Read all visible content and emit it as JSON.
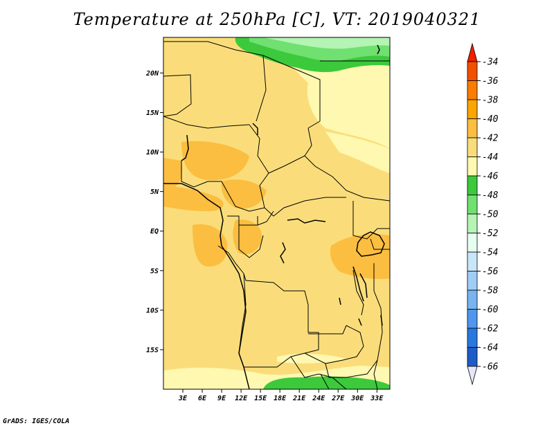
{
  "title": "Temperature at 250hPa [C], VT: 2019040321",
  "footer": "GrADS: IGES/COLA",
  "map": {
    "lon_range": [
      0,
      35
    ],
    "lat_range": [
      -20,
      24.5
    ],
    "x_ticks": [
      "3E",
      "6E",
      "9E",
      "12E",
      "15E",
      "18E",
      "21E",
      "24E",
      "27E",
      "30E",
      "33E"
    ],
    "x_tick_values": [
      3,
      6,
      9,
      12,
      15,
      18,
      21,
      24,
      27,
      30,
      33
    ],
    "y_ticks": [
      "20N",
      "15N",
      "10N",
      "5N",
      "EQ",
      "5S",
      "10S",
      "15S"
    ],
    "y_tick_values": [
      20,
      15,
      10,
      5,
      0,
      -5,
      -10,
      -15
    ],
    "base_color": "#fadd7a"
  },
  "colorbar": {
    "labels": [
      "-34",
      "-36",
      "-38",
      "-40",
      "-42",
      "-44",
      "-46",
      "-48",
      "-50",
      "-52",
      "-54",
      "-56",
      "-58",
      "-60",
      "-62",
      "-64",
      "-66"
    ],
    "colors": [
      "#f05000",
      "#fa7d00",
      "#faa500",
      "#fbbe40",
      "#fadd7a",
      "#fef8b0",
      "#3cc93c",
      "#70e070",
      "#b4f4b4",
      "#e6fff0",
      "#c8e6fa",
      "#a0cdf5",
      "#78b4f0",
      "#5096ec",
      "#2878e0",
      "#1e5ac8",
      "#14147a"
    ],
    "top_color": "#f02000",
    "bottom_color": "#e6e6fa"
  }
}
